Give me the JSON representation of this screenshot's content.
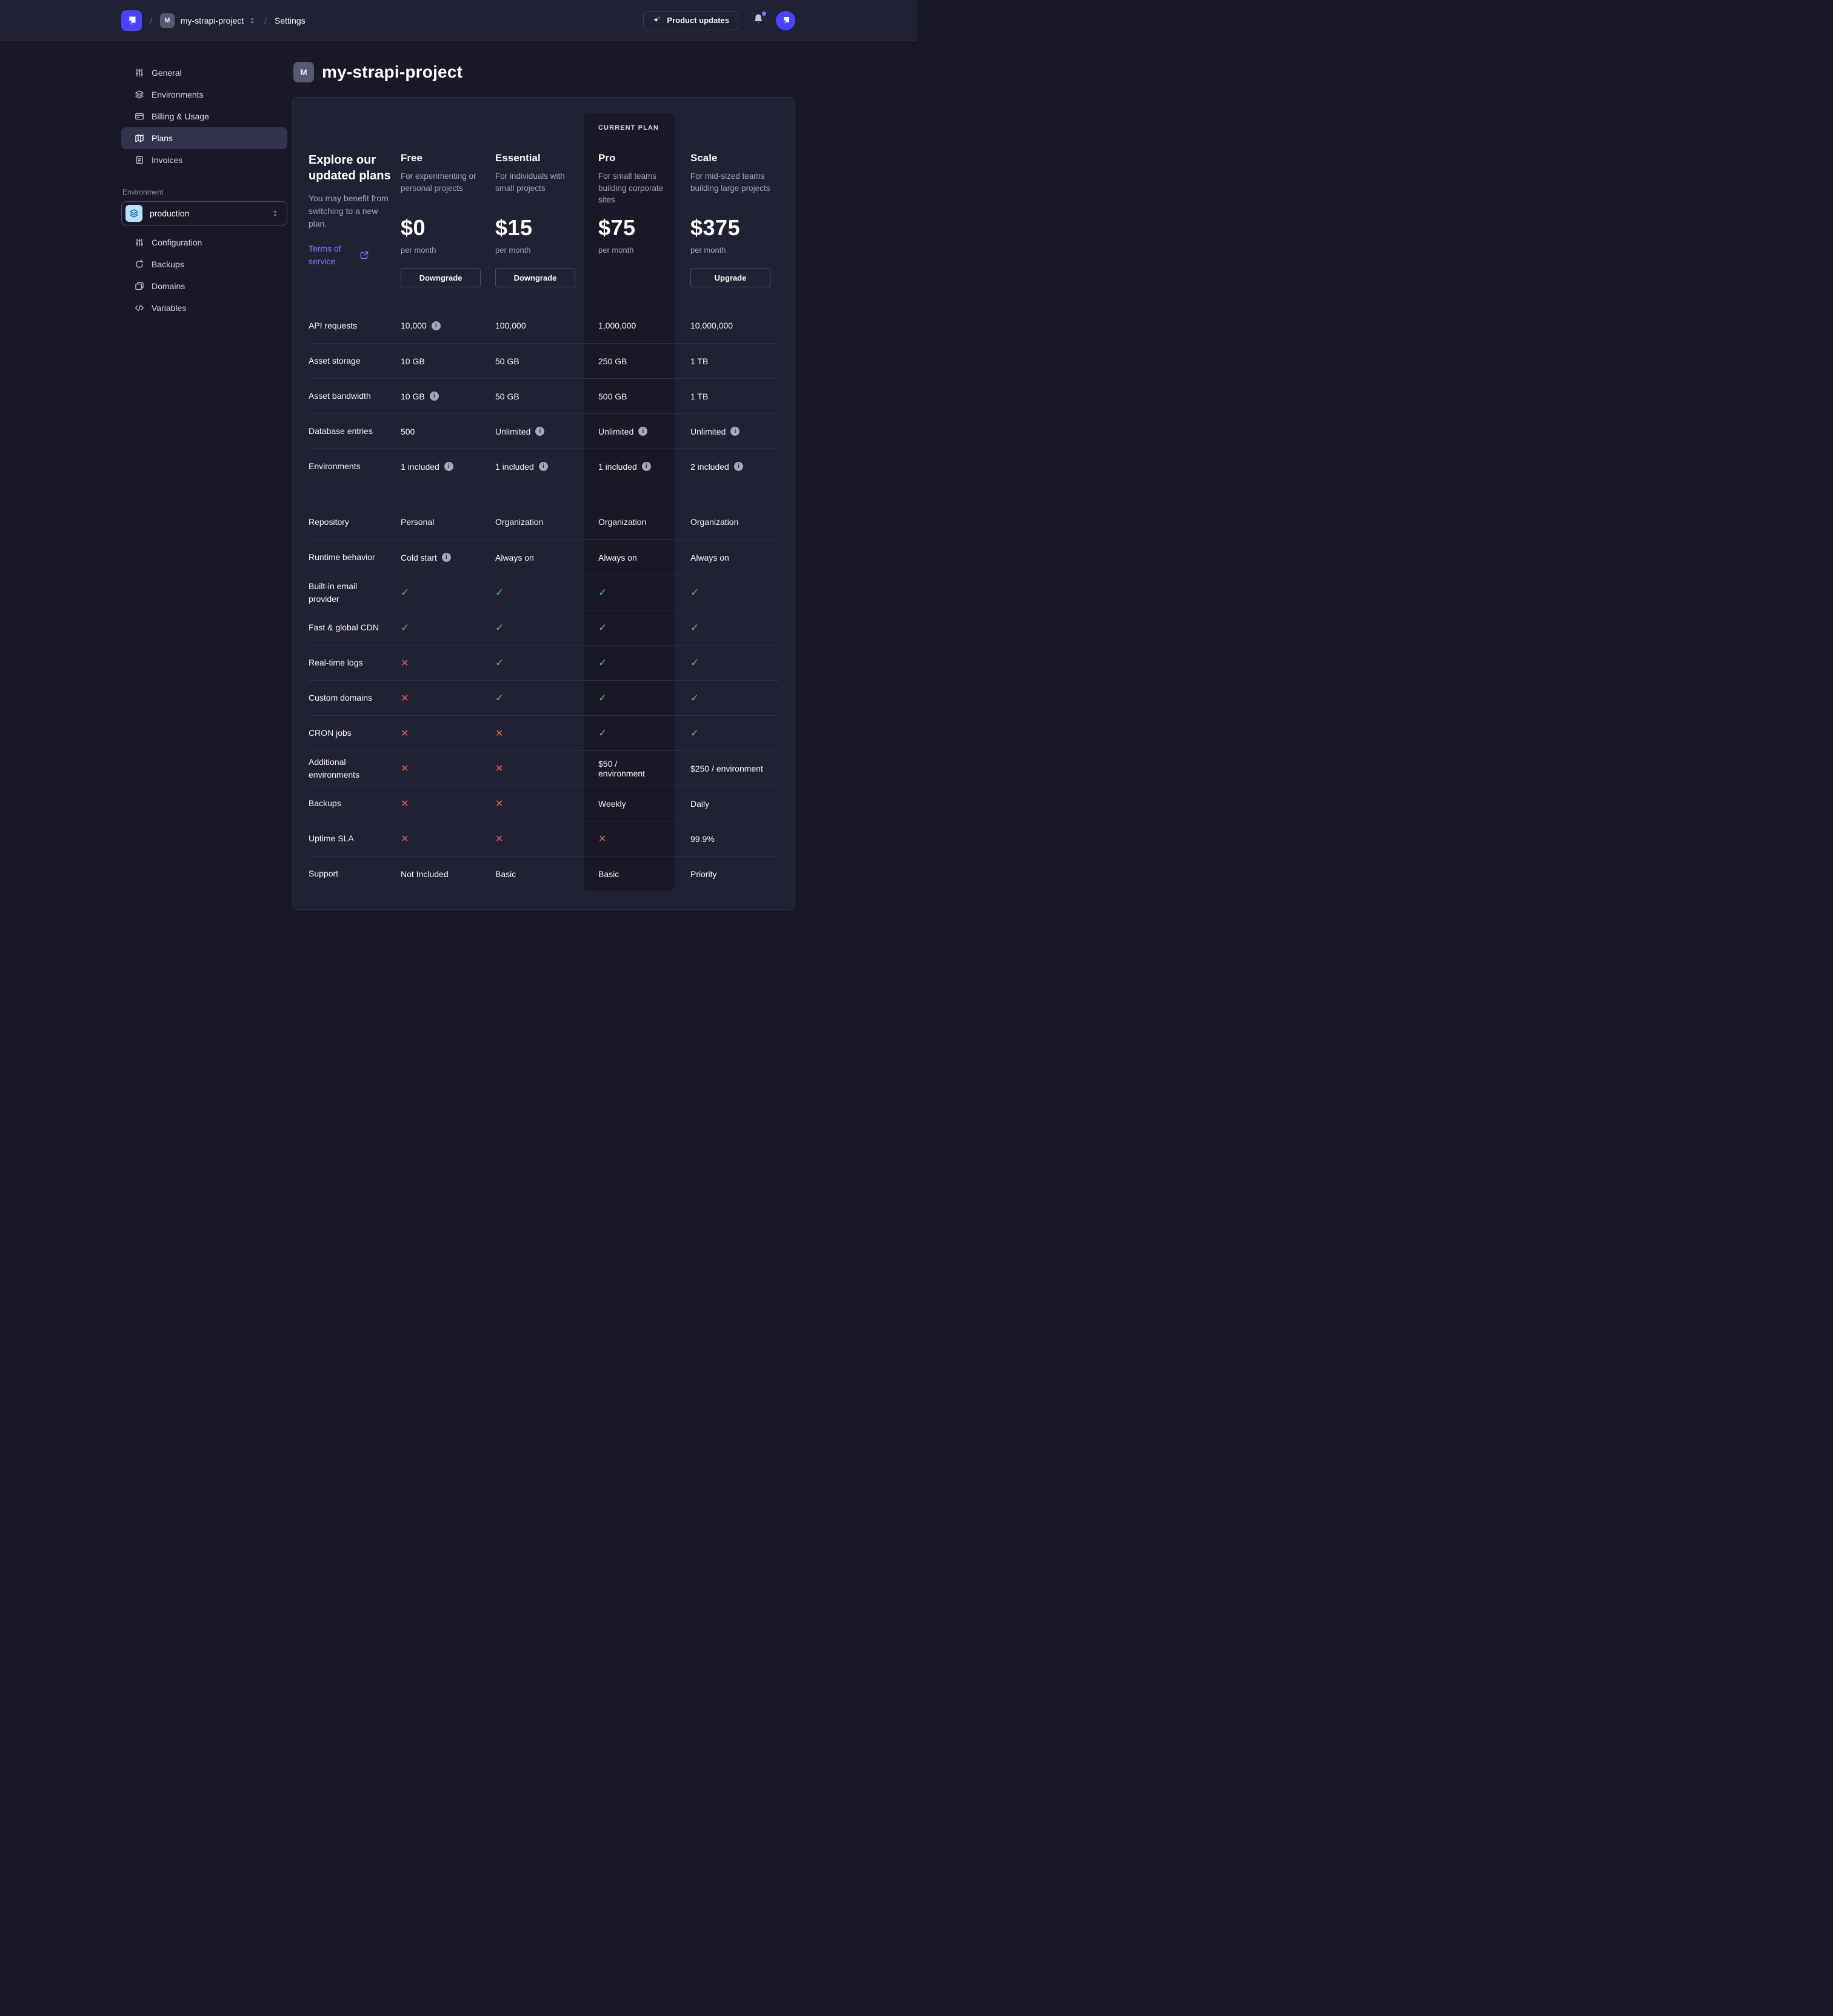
{
  "topbar": {
    "breadcrumb": {
      "separator": "/",
      "project_initial": "M",
      "project": "my-strapi-project",
      "section": "Settings"
    },
    "product_updates_label": "Product updates"
  },
  "sidebar": {
    "items": [
      {
        "label": "General",
        "icon": "sliders",
        "active": false
      },
      {
        "label": "Environments",
        "icon": "layers",
        "active": false
      },
      {
        "label": "Billing & Usage",
        "icon": "credit-card",
        "active": false
      },
      {
        "label": "Plans",
        "icon": "map",
        "active": true
      },
      {
        "label": "Invoices",
        "icon": "invoice",
        "active": false
      }
    ],
    "environment_label": "Environment",
    "environment_value": "production",
    "environment_items": [
      {
        "label": "Configuration",
        "icon": "sliders"
      },
      {
        "label": "Backups",
        "icon": "refresh"
      },
      {
        "label": "Domains",
        "icon": "folders"
      },
      {
        "label": "Variables",
        "icon": "code"
      }
    ]
  },
  "main": {
    "title_initial": "M",
    "title": "my-strapi-project",
    "intro": {
      "title": "Explore our updated plans",
      "subtitle": "You may benefit from switching to a new plan.",
      "link_label": "Terms of service"
    },
    "current_plan_badge": "CURRENT PLAN",
    "plans": [
      {
        "name": "Free",
        "description": "For experimenting or personal projects",
        "price": "$0",
        "period": "per month",
        "action": "Downgrade",
        "current": false
      },
      {
        "name": "Essential",
        "description": "For individuals with small projects",
        "price": "$15",
        "period": "per month",
        "action": "Downgrade",
        "current": false
      },
      {
        "name": "Pro",
        "description": "For small teams building corporate sites",
        "price": "$75",
        "period": "per month",
        "action": null,
        "current": true
      },
      {
        "name": "Scale",
        "description": "For mid-sized teams building large projects",
        "price": "$375",
        "period": "per month",
        "action": "Upgrade",
        "current": false
      }
    ],
    "features": [
      {
        "label": "API requests",
        "values": [
          {
            "text": "10,000",
            "info": true
          },
          {
            "text": "100,000"
          },
          {
            "text": "1,000,000"
          },
          {
            "text": "10,000,000"
          }
        ]
      },
      {
        "label": "Asset storage",
        "values": [
          {
            "text": "10 GB"
          },
          {
            "text": "50 GB"
          },
          {
            "text": "250 GB"
          },
          {
            "text": "1 TB"
          }
        ]
      },
      {
        "label": "Asset bandwidth",
        "values": [
          {
            "text": "10 GB",
            "info": true
          },
          {
            "text": "50 GB"
          },
          {
            "text": "500 GB"
          },
          {
            "text": "1 TB"
          }
        ]
      },
      {
        "label": "Database entries",
        "values": [
          {
            "text": "500"
          },
          {
            "text": "Unlimited",
            "info": true
          },
          {
            "text": "Unlimited",
            "info": true
          },
          {
            "text": "Unlimited",
            "info": true
          }
        ]
      },
      {
        "label": "Environments",
        "section_break": true,
        "values": [
          {
            "text": "1 included",
            "info": true
          },
          {
            "text": "1 included",
            "info": true
          },
          {
            "text": "1 included",
            "info": true
          },
          {
            "text": "2 included",
            "info": true
          }
        ]
      },
      {
        "label": "Repository",
        "values": [
          {
            "text": "Personal"
          },
          {
            "text": "Organization"
          },
          {
            "text": "Organization"
          },
          {
            "text": "Organization"
          }
        ]
      },
      {
        "label": "Runtime behavior",
        "values": [
          {
            "text": "Cold start",
            "info": true
          },
          {
            "text": "Always on"
          },
          {
            "text": "Always on"
          },
          {
            "text": "Always on"
          }
        ]
      },
      {
        "label": "Built-in email provider",
        "values": [
          {
            "mark": "check"
          },
          {
            "mark": "check"
          },
          {
            "mark": "check"
          },
          {
            "mark": "check"
          }
        ]
      },
      {
        "label": "Fast & global CDN",
        "values": [
          {
            "mark": "check"
          },
          {
            "mark": "check"
          },
          {
            "mark": "check"
          },
          {
            "mark": "check"
          }
        ]
      },
      {
        "label": "Real-time logs",
        "values": [
          {
            "mark": "cross"
          },
          {
            "mark": "check"
          },
          {
            "mark": "check"
          },
          {
            "mark": "check"
          }
        ]
      },
      {
        "label": "Custom domains",
        "values": [
          {
            "mark": "cross"
          },
          {
            "mark": "check"
          },
          {
            "mark": "check"
          },
          {
            "mark": "check"
          }
        ]
      },
      {
        "label": "CRON jobs",
        "values": [
          {
            "mark": "cross"
          },
          {
            "mark": "cross"
          },
          {
            "mark": "check"
          },
          {
            "mark": "check"
          }
        ]
      },
      {
        "label": "Additional environments",
        "values": [
          {
            "mark": "cross"
          },
          {
            "mark": "cross"
          },
          {
            "text": "$50 / environment"
          },
          {
            "text": "$250 / environment"
          }
        ]
      },
      {
        "label": "Backups",
        "values": [
          {
            "mark": "cross"
          },
          {
            "mark": "cross"
          },
          {
            "text": "Weekly"
          },
          {
            "text": "Daily"
          }
        ]
      },
      {
        "label": "Uptime SLA",
        "values": [
          {
            "mark": "cross"
          },
          {
            "mark": "cross"
          },
          {
            "mark": "cross"
          },
          {
            "text": "99.9%"
          }
        ]
      },
      {
        "label": "Support",
        "values": [
          {
            "text": "Not Included"
          },
          {
            "text": "Basic"
          },
          {
            "text": "Basic"
          },
          {
            "text": "Priority"
          }
        ]
      }
    ]
  },
  "colors": {
    "background": "#181826",
    "panel": "#212134",
    "accent": "#4945FF",
    "link": "#7B79FF",
    "success": "#5CB176",
    "danger": "#EE5E52",
    "env_chip_bg": "#B8E1FF",
    "env_chip_fg": "#1C6E9E"
  }
}
